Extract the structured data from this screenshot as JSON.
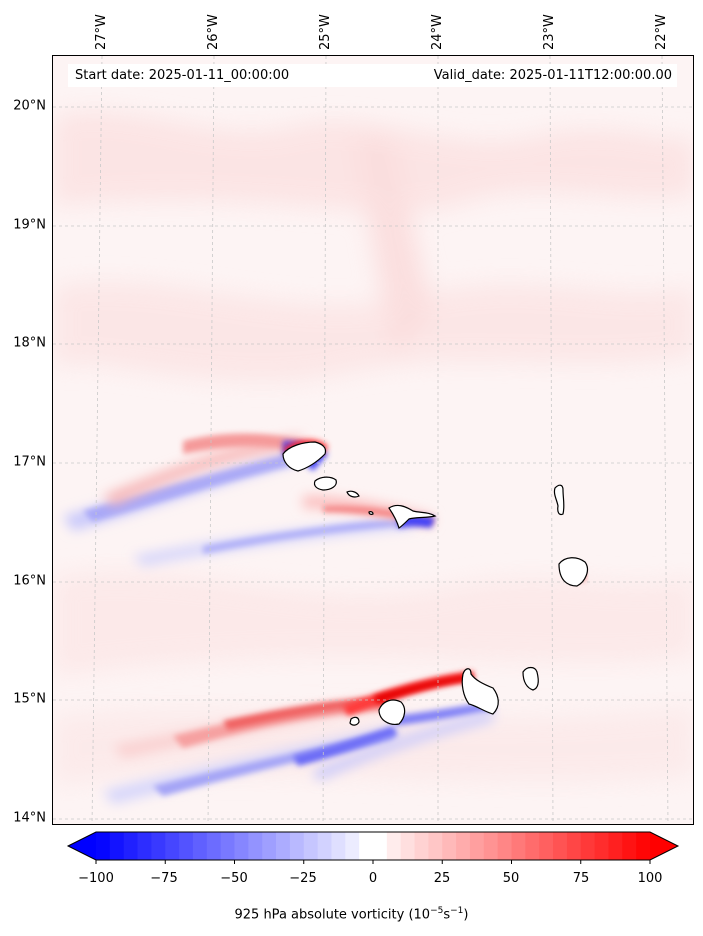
{
  "header": {
    "start_date": "Start date: 2025-01-11_00:00:00",
    "valid_date": "Valid_date: 2025-01-11T12:00:00.00"
  },
  "axes": {
    "lat_labels": [
      "20°N",
      "19°N",
      "18°N",
      "17°N",
      "16°N",
      "15°N",
      "14°N"
    ],
    "lon_labels": [
      "27°W",
      "26°W",
      "25°W",
      "24°W",
      "23°W",
      "22°W"
    ]
  },
  "colorbar": {
    "ticks": [
      "−100",
      "−75",
      "−50",
      "−25",
      "0",
      "25",
      "50",
      "75",
      "100"
    ],
    "label_main": "925 hPa absolute vorticity (10",
    "label_exp1": "−5",
    "label_mid": "s",
    "label_exp2": "−1",
    "label_end": ")",
    "min_color": "#0000ff",
    "mid_color": "#ffffff",
    "max_color": "#ff0000"
  },
  "colors": {
    "background_field": "#fdf4f4",
    "positive_vorticity": "#ff0000",
    "negative_vorticity": "#0000ff",
    "coastline": "#000000",
    "gridline": "#c8c8c8"
  },
  "map": {
    "region": "Cape Verde Islands",
    "field": "925 hPa absolute vorticity"
  }
}
